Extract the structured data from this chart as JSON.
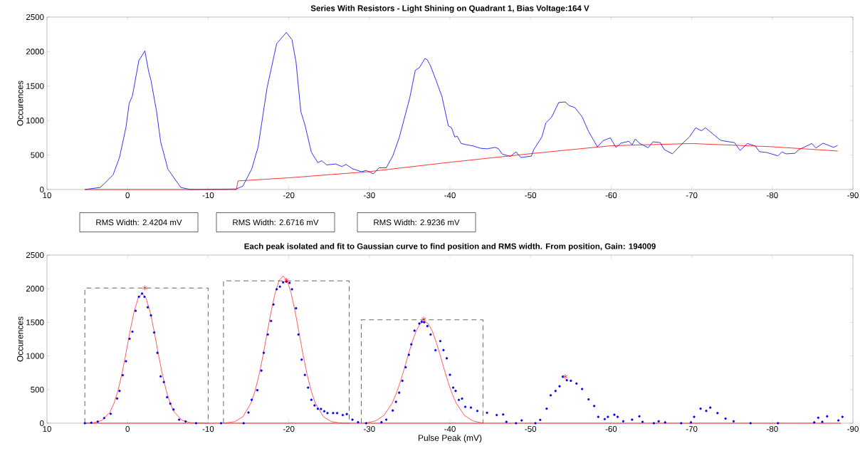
{
  "chart_data": [
    {
      "type": "line",
      "title": "Series With Resistors - Light Shining on Quadrant 1, Bias Voltage:164 V",
      "ylabel": "Occurences",
      "xlim": [
        10,
        -90
      ],
      "xticks": [
        10,
        0,
        -10,
        -20,
        -30,
        -40,
        -50,
        -60,
        -70,
        -80,
        -90
      ],
      "ylim": [
        0,
        2500
      ],
      "yticks": [
        0,
        500,
        1000,
        1500,
        2000,
        2500
      ],
      "series": [
        {
          "color": "#0000ff",
          "x": [
            5.3,
            3.4,
            2.9,
            1.8,
            1.0,
            0.2,
            -0.2,
            -0.6,
            -1.4,
            -2.15,
            -2.6,
            -2.9,
            -3.6,
            -4.1,
            -5.0,
            -6.6,
            -7.8,
            -13.5,
            -14.3,
            -15.4,
            -16.2,
            -17.3,
            -18.5,
            -19.7,
            -20.4,
            -20.9,
            -21.5,
            -22.0,
            -22.8,
            -23.6,
            -24.1,
            -24.7,
            -25.8,
            -26.6,
            -27.1,
            -27.9,
            -29.0,
            -29.6,
            -30.5,
            -31.2,
            -32.1,
            -32.9,
            -33.7,
            -35.0,
            -35.7,
            -36.2,
            -36.9,
            -37.2,
            -37.6,
            -38.3,
            -39.0,
            -39.8,
            -40.2,
            -40.6,
            -40.9,
            -41.4,
            -42.0,
            -42.9,
            -43.8,
            -44.6,
            -45.6,
            -46.0,
            -46.5,
            -47.5,
            -48.2,
            -48.8,
            -50.1,
            -50.4,
            -51.4,
            -51.9,
            -52.6,
            -53.5,
            -54.3,
            -54.8,
            -55.5,
            -56.4,
            -57.2,
            -58.3,
            -59.0,
            -59.9,
            -60.6,
            -61.2,
            -62.2,
            -62.6,
            -63.0,
            -63.5,
            -64.6,
            -65.2,
            -66.1,
            -66.6,
            -67.6,
            -68.7,
            -69.7,
            -70.5,
            -71.2,
            -71.7,
            -73.6,
            -75.3,
            -76.0,
            -76.9,
            -77.9,
            -78.4,
            -79.3,
            -80.7,
            -81.2,
            -81.7,
            -82.8,
            -83.3,
            -84.9,
            -85.4,
            -86.3,
            -87.6,
            -88.1
          ],
          "values": [
            0,
            30,
            83,
            212,
            466,
            900,
            1250,
            1357,
            1870,
            2010,
            1720,
            1585,
            1130,
            694,
            296,
            30,
            0,
            8,
            49,
            296,
            618,
            1470,
            2115,
            2278,
            2172,
            1850,
            1130,
            940,
            542,
            390,
            417,
            356,
            371,
            333,
            364,
            303,
            258,
            277,
            227,
            315,
            315,
            485,
            750,
            1320,
            1728,
            1766,
            1900,
            1880,
            1790,
            1575,
            1351,
            924,
            895,
            761,
            773,
            667,
            651,
            631,
            598,
            590,
            611,
            594,
            513,
            480,
            545,
            464,
            484,
            578,
            761,
            965,
            1046,
            1262,
            1270,
            1217,
            1188,
            1054,
            842,
            619,
            708,
            749,
            611,
            672,
            700,
            647,
            733,
            672,
            606,
            692,
            680,
            578,
            517,
            651,
            761,
            895,
            851,
            895,
            712,
            680,
            566,
            667,
            631,
            549,
            537,
            488,
            545,
            517,
            525,
            578,
            667,
            602,
            672,
            611,
            639
          ]
        },
        {
          "color": "#ff0000",
          "x": [
            5.3,
            -13.5,
            -13.7,
            -20,
            -30,
            -40,
            -50,
            -60,
            -70,
            -80,
            -88.1
          ],
          "values": [
            0,
            0,
            125,
            170,
            260,
            395,
            520,
            635,
            667,
            620,
            558
          ]
        }
      ]
    },
    {
      "type": "line",
      "title": "Each peak isolated and fit to Gaussian curve to find position and RMS width.  From position, Gain: 194009",
      "xlabel": "Pulse Peak (mV)",
      "ylabel": "Occurences",
      "xlim": [
        10,
        -90
      ],
      "xticks": [
        10,
        0,
        -10,
        -20,
        -30,
        -40,
        -50,
        -60,
        -70,
        -80,
        -90
      ],
      "ylim": [
        0,
        2500
      ],
      "yticks": [
        0,
        500,
        1000,
        1500,
        2000,
        2500
      ],
      "annotations": [
        "RMS Width: 2.4204 mV",
        "RMS Width: 2.6716 mV",
        "RMS Width: 2.9236 mV"
      ],
      "series": [
        {
          "color": "#ff0000",
          "x": [
            5.3,
            -88.5
          ],
          "values": [
            0,
            0
          ]
        },
        {
          "type": "scatter",
          "marker": "circle",
          "color": "#0000ff",
          "x": [
            5.3,
            4.5,
            3.7,
            2.9,
            2.1,
            1.3,
            1.0,
            0.6,
            0.2,
            -0.25,
            -0.6,
            -1.0,
            -1.4,
            -1.8,
            -2.1,
            -2.5,
            -2.9,
            -3.3,
            -3.7,
            -4.1,
            -4.5,
            -4.9,
            -5.3,
            -5.7,
            -6.4,
            -7.2,
            -8.5,
            -11.6,
            -14.4,
            -15.0,
            -15.4,
            -16.1,
            -16.6,
            -16.9,
            -17.4,
            -17.8,
            -18.1,
            -18.5,
            -18.9,
            -19.3,
            -19.7,
            -20.1,
            -20.4,
            -20.9,
            -21.2,
            -21.6,
            -22.0,
            -22.4,
            -22.8,
            -23.2,
            -23.6,
            -24.0,
            -24.4,
            -24.8,
            -25.5,
            -26.0,
            -26.7,
            -27.2,
            -27.9,
            -28.6,
            -29.6,
            -31.5,
            -32.1,
            -32.9,
            -33.3,
            -33.7,
            -34.1,
            -34.5,
            -34.9,
            -35.2,
            -35.6,
            -36.2,
            -36.5,
            -36.8,
            -37.2,
            -37.6,
            -38.2,
            -38.8,
            -39.2,
            -39.6,
            -40.0,
            -40.4,
            -40.7,
            -41.1,
            -41.5,
            -41.9,
            -42.6,
            -43.4,
            -44.6,
            -45.8,
            -46.6,
            -47.0,
            -48.2,
            -48.9,
            -50.6,
            -51.2,
            -52.0,
            -52.5,
            -53.1,
            -53.6,
            -54.0,
            -54.5,
            -55.0,
            -55.7,
            -56.4,
            -57.2,
            -57.9,
            -58.4,
            -59.2,
            -59.6,
            -60.4,
            -60.8,
            -61.5,
            -62.6,
            -63.5,
            -63.9,
            -65.3,
            -65.9,
            -66.7,
            -68.7,
            -69.9,
            -70.3,
            -71.1,
            -71.8,
            -72.3,
            -73.2,
            -74.2,
            -75.2,
            -77.3,
            -80.7,
            -85.2,
            -85.7,
            -86.2,
            -86.8,
            -88.2,
            -88.7
          ],
          "values": [
            0,
            8,
            23,
            76,
            140,
            367,
            480,
            714,
            922,
            1255,
            1361,
            1671,
            1879,
            1928,
            1879,
            1724,
            1603,
            1349,
            1047,
            696,
            612,
            386,
            291,
            204,
            53,
            26,
            0,
            0,
            0,
            159,
            348,
            491,
            782,
            1047,
            1319,
            1520,
            1765,
            1992,
            2030,
            2094,
            2105,
            2087,
            1992,
            1709,
            1319,
            945,
            718,
            529,
            348,
            265,
            215,
            212,
            178,
            151,
            151,
            151,
            121,
            136,
            53,
            15,
            0,
            15,
            53,
            189,
            318,
            454,
            631,
            832,
            1017,
            1172,
            1376,
            1482,
            1508,
            1501,
            1444,
            1319,
            1085,
            1221,
            1087,
            965,
            720,
            529,
            480,
            346,
            366,
            244,
            232,
            183,
            155,
            122,
            130,
            20,
            0,
            41,
            0,
            49,
            216,
            415,
            480,
            549,
            692,
            639,
            631,
            590,
            509,
            354,
            256,
            94,
            61,
            94,
            126,
            94,
            28,
            53,
            102,
            20,
            0,
            28,
            12,
            0,
            12,
            94,
            216,
            183,
            232,
            151,
            69,
            28,
            0,
            0,
            12,
            81,
            20,
            102,
            41,
            94
          ]
        },
        {
          "color": "#ff3333",
          "x": [
            5.3,
            4.2,
            3.2,
            2.2,
            1.7,
            1.2,
            0.7,
            0.2,
            -0.3,
            -0.8,
            -1.3,
            -1.8,
            -2.3,
            -2.8,
            -3.3,
            -3.8,
            -4.3,
            -4.8,
            -5.3,
            -5.8,
            -6.8,
            -7.8,
            -10
          ],
          "values": [
            0,
            8,
            41,
            164,
            291,
            481,
            735,
            1040,
            1365,
            1654,
            1857,
            1930,
            1857,
            1654,
            1365,
            1040,
            735,
            481,
            291,
            164,
            41,
            8,
            0
          ]
        },
        {
          "color": "#ff3333",
          "x": [
            -12,
            -13.3,
            -14.3,
            -15.3,
            -15.8,
            -16.3,
            -16.8,
            -17.3,
            -17.8,
            -18.3,
            -18.8,
            -19.3,
            -19.8,
            -20.3,
            -20.8,
            -21.3,
            -21.8,
            -22.3,
            -22.8,
            -23.3,
            -24.3,
            -25.3,
            -26.3,
            -27.5
          ],
          "values": [
            1,
            24,
            96,
            296,
            473,
            711,
            1003,
            1329,
            1653,
            1931,
            2121,
            2189,
            2121,
            1931,
            1653,
            1329,
            1003,
            711,
            473,
            296,
            96,
            24,
            4,
            0
          ]
        },
        {
          "color": "#ff3333",
          "x": [
            -29.3,
            -29.8,
            -30.8,
            -31.8,
            -32.8,
            -33.3,
            -33.8,
            -34.3,
            -34.8,
            -35.3,
            -35.8,
            -36.3,
            -36.8,
            -37.3,
            -37.8,
            -38.3,
            -38.8,
            -39.3,
            -39.8,
            -40.3,
            -40.8,
            -41.8,
            -42.8,
            -43.8,
            -44
          ],
          "values": [
            3,
            9,
            36,
            116,
            292,
            429,
            600,
            796,
            1006,
            1204,
            1371,
            1480,
            1520,
            1480,
            1371,
            1204,
            1006,
            796,
            600,
            429,
            292,
            116,
            36,
            9,
            7
          ]
        },
        {
          "type": "scatter",
          "marker": "cross",
          "color": "#ff0000",
          "x": [
            -2.15,
            -19.7,
            -36.75,
            -54.3
          ],
          "values": [
            2011,
            2124,
            1546,
            692
          ]
        },
        {
          "line_style": "dashed",
          "color": "#404040",
          "x": [
            5.3,
            5.3,
            -10,
            -10
          ],
          "values": [
            0,
            2010,
            2010,
            0
          ]
        },
        {
          "line_style": "dashed",
          "color": "#404040",
          "x": [
            -11.9,
            -11.9,
            -27.5,
            -27.5
          ],
          "values": [
            0,
            2117,
            2117,
            0
          ]
        },
        {
          "line_style": "dashed",
          "color": "#404040",
          "x": [
            -29.0,
            -29.0,
            -44.1,
            -44.1
          ],
          "values": [
            0,
            1538,
            1538,
            0
          ]
        }
      ]
    }
  ]
}
